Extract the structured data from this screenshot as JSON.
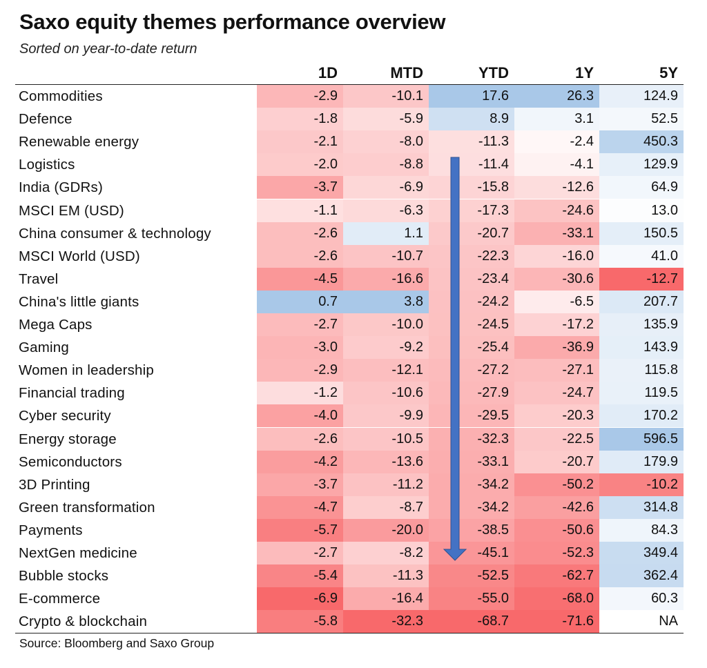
{
  "chart_data": {
    "type": "table",
    "title": "Saxo equity themes performance overview",
    "subtitle": "Sorted on year-to-date return",
    "source": "Source: Bloomberg and Saxo Group",
    "columns": [
      "1D",
      "MTD",
      "YTD",
      "1Y",
      "5Y"
    ],
    "rows": [
      {
        "name": "Commodities",
        "values": [
          "-2.9",
          "-10.1",
          "17.6",
          "26.3",
          "124.9"
        ]
      },
      {
        "name": "Defence",
        "values": [
          "-1.8",
          "-5.9",
          "8.9",
          "3.1",
          "52.5"
        ]
      },
      {
        "name": "Renewable energy",
        "values": [
          "-2.1",
          "-8.0",
          "-11.3",
          "-2.4",
          "450.3"
        ]
      },
      {
        "name": "Logistics",
        "values": [
          "-2.0",
          "-8.8",
          "-11.4",
          "-4.1",
          "129.9"
        ]
      },
      {
        "name": "India (GDRs)",
        "values": [
          "-3.7",
          "-6.9",
          "-15.8",
          "-12.6",
          "64.9"
        ]
      },
      {
        "name": "MSCI EM (USD)",
        "values": [
          "-1.1",
          "-6.3",
          "-17.3",
          "-24.6",
          "13.0"
        ]
      },
      {
        "name": "China consumer & technology",
        "values": [
          "-2.6",
          "1.1",
          "-20.7",
          "-33.1",
          "150.5"
        ]
      },
      {
        "name": "MSCI World (USD)",
        "values": [
          "-2.6",
          "-10.7",
          "-22.3",
          "-16.0",
          "41.0"
        ]
      },
      {
        "name": "Travel",
        "values": [
          "-4.5",
          "-16.6",
          "-23.4",
          "-30.6",
          "-12.7"
        ]
      },
      {
        "name": "China's little giants",
        "values": [
          "0.7",
          "3.8",
          "-24.2",
          "-6.5",
          "207.7"
        ]
      },
      {
        "name": "Mega Caps",
        "values": [
          "-2.7",
          "-10.0",
          "-24.5",
          "-17.2",
          "135.9"
        ]
      },
      {
        "name": "Gaming",
        "values": [
          "-3.0",
          "-9.2",
          "-25.4",
          "-36.9",
          "143.9"
        ]
      },
      {
        "name": "Women in leadership",
        "values": [
          "-2.9",
          "-12.1",
          "-27.2",
          "-27.1",
          "115.8"
        ]
      },
      {
        "name": "Financial trading",
        "values": [
          "-1.2",
          "-10.6",
          "-27.9",
          "-24.7",
          "119.5"
        ]
      },
      {
        "name": "Cyber security",
        "values": [
          "-4.0",
          "-9.9",
          "-29.5",
          "-20.3",
          "170.2"
        ]
      },
      {
        "name": "Energy storage",
        "values": [
          "-2.6",
          "-10.5",
          "-32.3",
          "-22.5",
          "596.5"
        ]
      },
      {
        "name": "Semiconductors",
        "values": [
          "-4.2",
          "-13.6",
          "-33.1",
          "-20.7",
          "179.9"
        ]
      },
      {
        "name": "3D Printing",
        "values": [
          "-3.7",
          "-11.2",
          "-34.2",
          "-50.2",
          "-10.2"
        ]
      },
      {
        "name": "Green transformation",
        "values": [
          "-4.7",
          "-8.7",
          "-34.2",
          "-42.6",
          "314.8"
        ]
      },
      {
        "name": "Payments",
        "values": [
          "-5.7",
          "-20.0",
          "-38.5",
          "-50.6",
          "84.3"
        ]
      },
      {
        "name": "NextGen medicine",
        "values": [
          "-2.7",
          "-8.2",
          "-45.1",
          "-52.3",
          "349.4"
        ]
      },
      {
        "name": "Bubble stocks",
        "values": [
          "-5.4",
          "-11.3",
          "-52.5",
          "-62.7",
          "362.4"
        ]
      },
      {
        "name": "E-commerce",
        "values": [
          "-6.9",
          "-16.4",
          "-55.0",
          "-68.0",
          "60.3"
        ]
      },
      {
        "name": "Crypto & blockchain",
        "values": [
          "-5.8",
          "-32.3",
          "-68.7",
          "-71.6",
          "NA"
        ]
      }
    ],
    "colors": {
      "negative": "#f8696b",
      "positive": "#a9c8e8",
      "neutral": "#ffffff",
      "arrow": "#4472c4"
    }
  }
}
